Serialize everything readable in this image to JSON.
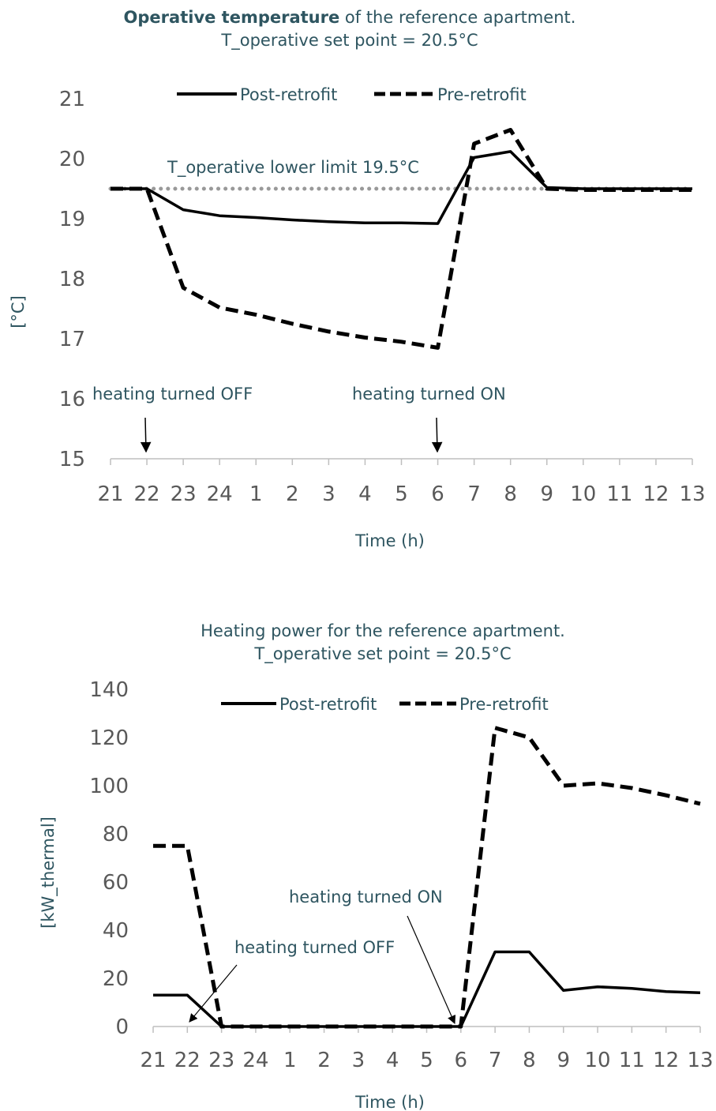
{
  "chart_data": [
    {
      "type": "line",
      "title_bold": "Operative temperature",
      "title_rest": " of the reference apartment.",
      "subtitle": "T_operative set point = 20.5°C",
      "xlabel": "Time (h)",
      "ylabel": "[°C]",
      "categories": [
        "21",
        "22",
        "23",
        "24",
        "1",
        "2",
        "3",
        "4",
        "5",
        "6",
        "7",
        "8",
        "9",
        "10",
        "11",
        "12",
        "13"
      ],
      "ylim": [
        15,
        21
      ],
      "yticks": [
        "15",
        "16",
        "17",
        "18",
        "19",
        "20",
        "21"
      ],
      "legend_position": "top",
      "series": [
        {
          "name": "Post-retrofit",
          "style": "solid",
          "color": "#000000",
          "values": [
            19.5,
            19.5,
            19.15,
            19.05,
            19.02,
            18.98,
            18.95,
            18.93,
            18.93,
            18.92,
            20.02,
            20.12,
            19.52,
            19.5,
            19.5,
            19.5,
            19.5
          ]
        },
        {
          "name": "Pre-retrofit",
          "style": "dashed",
          "color": "#000000",
          "values": [
            19.5,
            19.5,
            17.85,
            17.52,
            17.4,
            17.25,
            17.12,
            17.02,
            16.95,
            16.85,
            20.25,
            20.48,
            19.5,
            19.48,
            19.48,
            19.48,
            19.48
          ]
        }
      ],
      "reference_line": {
        "label": "T_operative lower limit 19.5°C",
        "value": 19.5,
        "style": "dotted",
        "color": "#999999"
      },
      "annotations": [
        {
          "text": "heating turned OFF",
          "category": "22"
        },
        {
          "text": "heating turned ON",
          "category": "6"
        }
      ]
    },
    {
      "type": "line",
      "title": "Heating power for the reference apartment.",
      "subtitle": "T_operative set point = 20.5°C",
      "xlabel": "Time (h)",
      "ylabel": "[kW_thermal]",
      "categories": [
        "21",
        "22",
        "23",
        "24",
        "1",
        "2",
        "3",
        "4",
        "5",
        "6",
        "7",
        "8",
        "9",
        "10",
        "11",
        "12",
        "13"
      ],
      "ylim": [
        0,
        140
      ],
      "yticks": [
        "0",
        "20",
        "40",
        "60",
        "80",
        "100",
        "120",
        "140"
      ],
      "legend_position": "top",
      "series": [
        {
          "name": "Post-retrofit",
          "style": "solid",
          "color": "#000000",
          "values": [
            13,
            13,
            0,
            0,
            0,
            0,
            0,
            0,
            0,
            0,
            31,
            31,
            15,
            16.5,
            15.8,
            14.5,
            14
          ]
        },
        {
          "name": "Pre-retrofit",
          "style": "dashed",
          "color": "#000000",
          "values": [
            75,
            75,
            0,
            0,
            0,
            0,
            0,
            0,
            0,
            0,
            124,
            120,
            100,
            101,
            99,
            96,
            92.5
          ]
        }
      ],
      "annotations": [
        {
          "text": "heating turned OFF",
          "category": "23"
        },
        {
          "text": "heating turned ON",
          "category": "6"
        }
      ]
    }
  ]
}
